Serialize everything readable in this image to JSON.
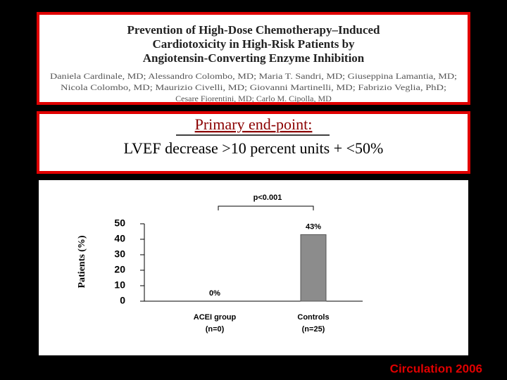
{
  "paper": {
    "title": [
      "Prevention of High-Dose Chemotherapy–Induced",
      "Cardiotoxicity in High-Risk Patients by",
      "Angiotensin-Converting Enzyme Inhibition"
    ],
    "authors": [
      "Daniela Cardinale, MD; Alessandro Colombo, MD; Maria T. Sandri, MD; Giuseppina Lamantia, MD;",
      "Nicola Colombo, MD; Maurizio Civelli, MD; Giovanni Martinelli, MD; Fabrizio Veglia, PhD;",
      "Cesare Fiorentini, MD; Carlo M. Cipolla, MD"
    ]
  },
  "endpoint": {
    "label": "Primary end-point:",
    "text": "LVEF decrease >10 percent units + <50%"
  },
  "chart_data": {
    "type": "bar",
    "y_label": "Patients (%)",
    "categories": [
      "ACEI group",
      "Controls"
    ],
    "category_notes": [
      "(n=0)",
      "(n=25)"
    ],
    "values": [
      0,
      43
    ],
    "value_labels": [
      "0%",
      "43%"
    ],
    "color": "#8c8c8c",
    "ylim": [
      0,
      50
    ],
    "yticks": [
      0,
      10,
      20,
      30,
      40,
      50
    ],
    "grid": false,
    "annotation": "p<0.001"
  },
  "footer": "Circulation 2006"
}
